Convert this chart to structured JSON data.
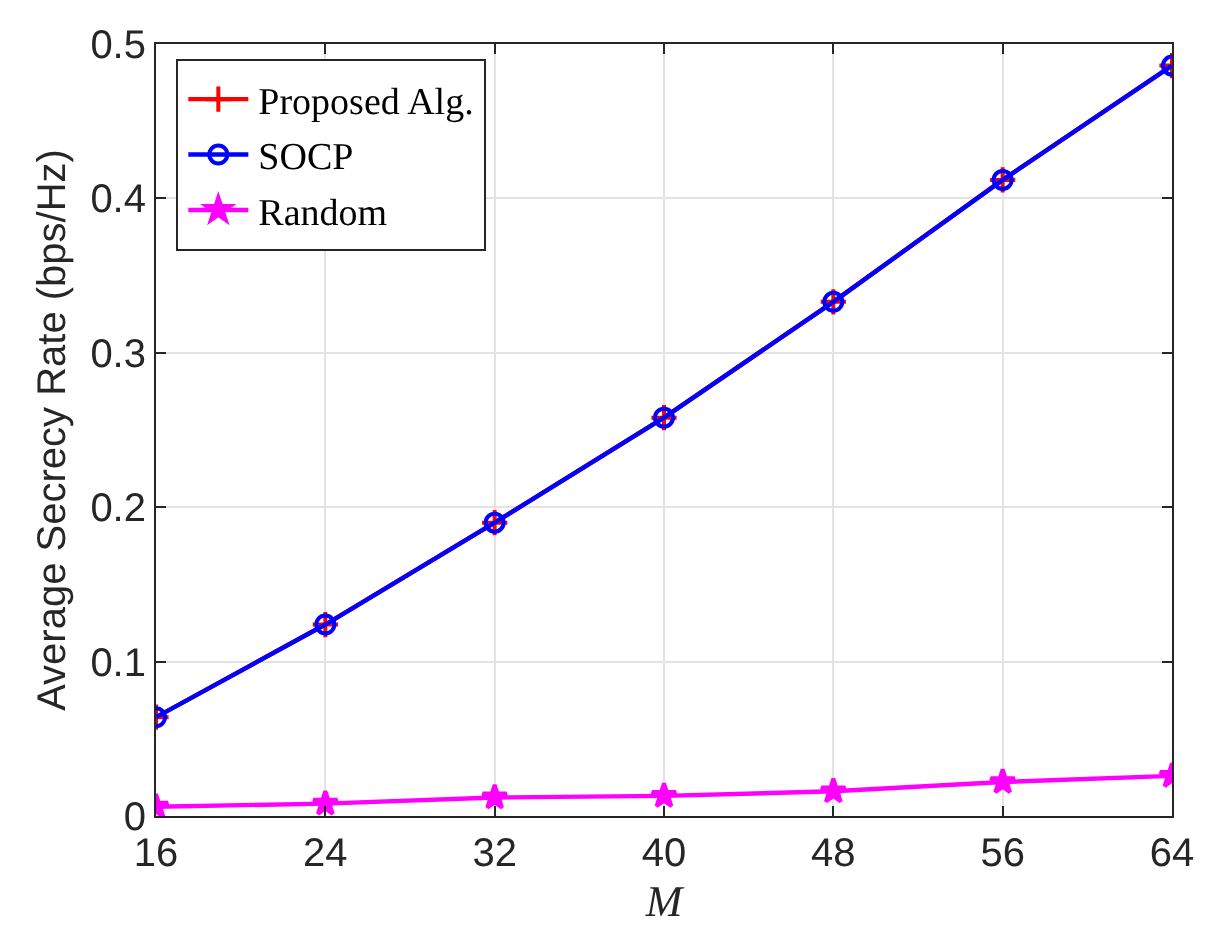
{
  "chart_data": {
    "type": "line",
    "xlabel": "M",
    "ylabel": "Average Secrecy Rate (bps/Hz)",
    "x": [
      16,
      24,
      32,
      40,
      48,
      56,
      64
    ],
    "series": [
      {
        "name": "Proposed Alg.",
        "color": "#ff0000",
        "marker": "cross",
        "values": [
          0.064,
          0.124,
          0.19,
          0.258,
          0.333,
          0.412,
          0.486
        ]
      },
      {
        "name": "SOCP",
        "color": "#0000ff",
        "marker": "circle",
        "values": [
          0.064,
          0.124,
          0.19,
          0.258,
          0.333,
          0.412,
          0.486
        ]
      },
      {
        "name": "Random",
        "color": "#ff00ff",
        "marker": "star",
        "values": [
          0.006,
          0.008,
          0.012,
          0.013,
          0.016,
          0.022,
          0.026
        ]
      }
    ],
    "xlim": [
      16,
      64
    ],
    "xticks": [
      16,
      24,
      32,
      40,
      48,
      56,
      64
    ],
    "ylim": [
      0,
      0.5
    ],
    "yticks": [
      0,
      0.1,
      0.2,
      0.3,
      0.4,
      0.5
    ],
    "grid": true,
    "legend": "top left",
    "line_style": "solid"
  }
}
